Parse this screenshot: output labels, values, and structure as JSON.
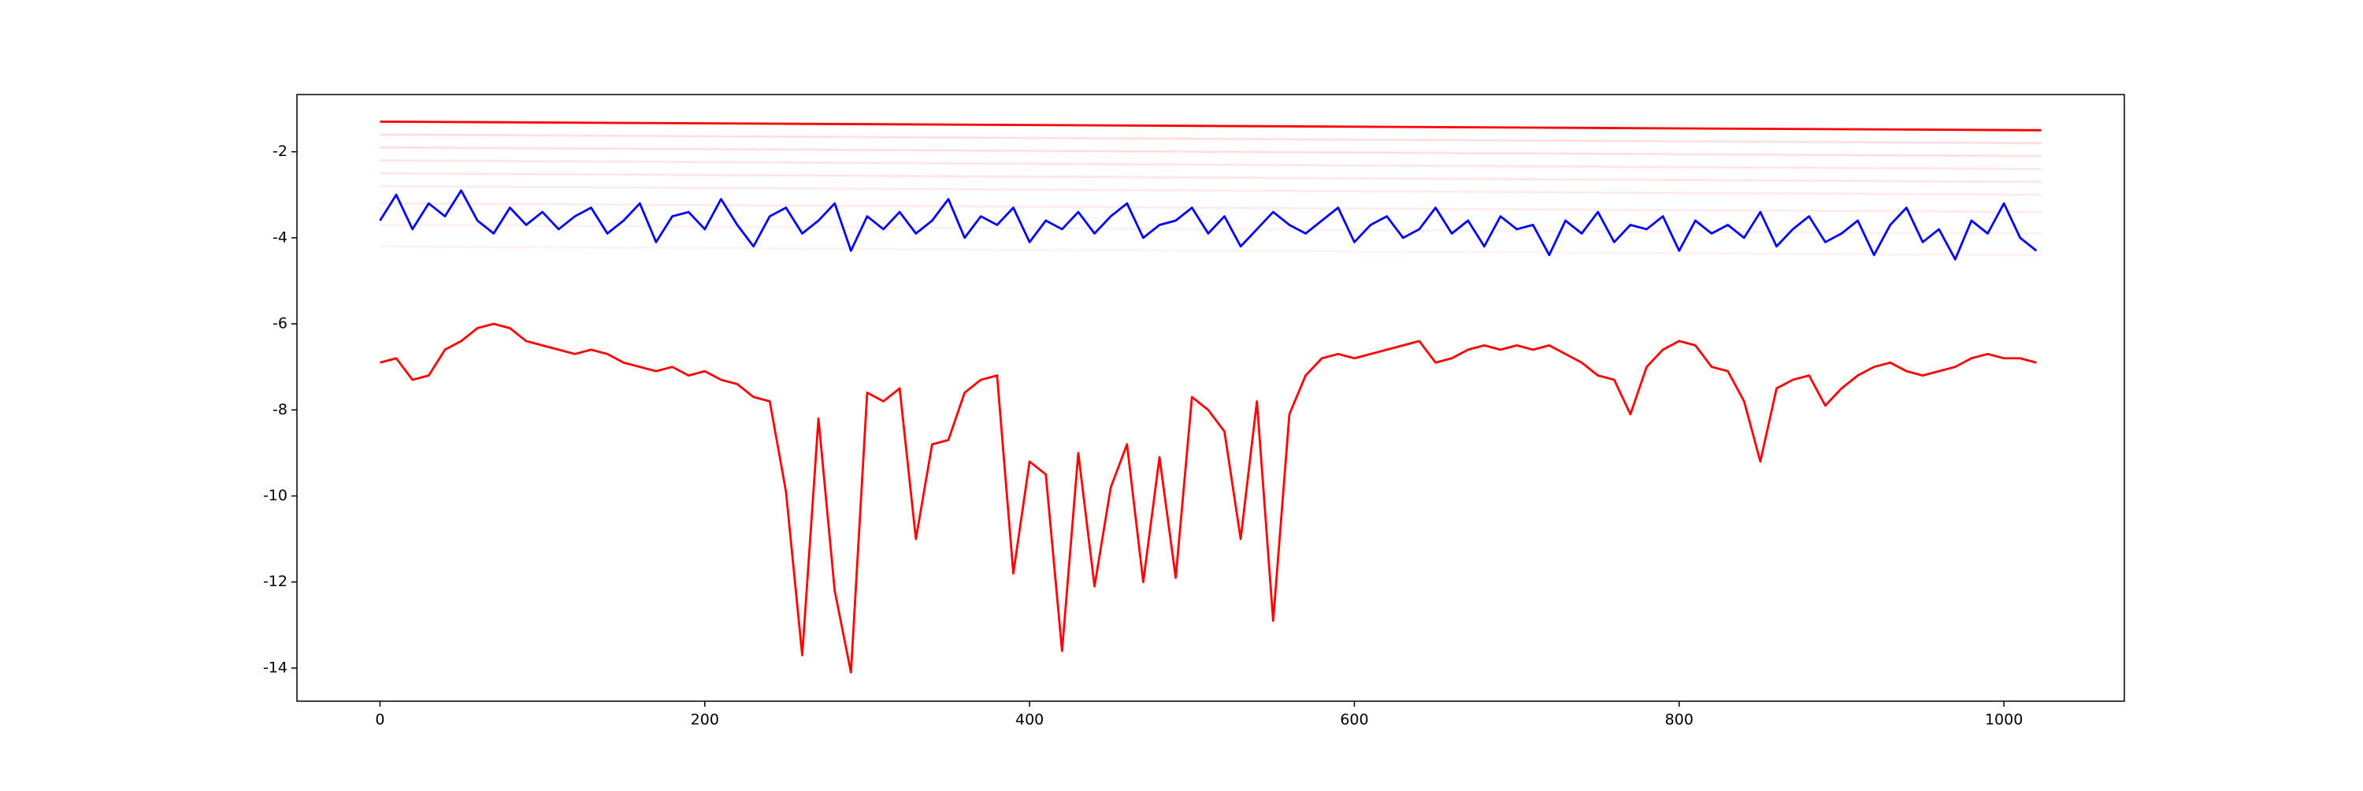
{
  "chart_data": {
    "type": "line",
    "x": [
      0,
      10,
      20,
      30,
      40,
      50,
      60,
      70,
      80,
      90,
      100,
      110,
      120,
      130,
      140,
      150,
      160,
      170,
      180,
      190,
      200,
      210,
      220,
      230,
      240,
      250,
      260,
      270,
      280,
      290,
      300,
      310,
      320,
      330,
      340,
      350,
      360,
      370,
      380,
      390,
      400,
      410,
      420,
      430,
      440,
      450,
      460,
      470,
      480,
      490,
      500,
      510,
      520,
      530,
      540,
      550,
      560,
      570,
      580,
      590,
      600,
      610,
      620,
      630,
      640,
      650,
      660,
      670,
      680,
      690,
      700,
      710,
      720,
      730,
      740,
      750,
      760,
      770,
      780,
      790,
      800,
      810,
      820,
      830,
      840,
      850,
      860,
      870,
      880,
      890,
      900,
      910,
      920,
      930,
      940,
      950,
      960,
      970,
      980,
      990,
      1000,
      1010,
      1020
    ],
    "series": [
      {
        "color": "#ff0000",
        "alpha": 0.12,
        "x": [
          0,
          1023
        ],
        "values": [
          -1.6,
          -1.8
        ]
      },
      {
        "color": "#ff0000",
        "alpha": 0.12,
        "x": [
          0,
          1023
        ],
        "values": [
          -1.9,
          -2.1
        ]
      },
      {
        "color": "#ff0000",
        "alpha": 0.1,
        "x": [
          0,
          1023
        ],
        "values": [
          -2.2,
          -2.4
        ]
      },
      {
        "color": "#ff0000",
        "alpha": 0.1,
        "x": [
          0,
          1023
        ],
        "values": [
          -2.5,
          -2.7
        ]
      },
      {
        "color": "#ff0000",
        "alpha": 0.08,
        "x": [
          0,
          1023
        ],
        "values": [
          -2.8,
          -3.0
        ]
      },
      {
        "color": "#ff0000",
        "alpha": 0.08,
        "x": [
          0,
          1023
        ],
        "values": [
          -3.2,
          -3.4
        ]
      },
      {
        "color": "#ff0000",
        "alpha": 0.06,
        "x": [
          0,
          1023
        ],
        "values": [
          -3.7,
          -3.9
        ]
      },
      {
        "color": "#ff0000",
        "alpha": 0.05,
        "x": [
          0,
          1023
        ],
        "values": [
          -4.2,
          -4.4
        ]
      },
      {
        "color": "#ff0000",
        "alpha": 1,
        "x": [
          0,
          1023
        ],
        "values": [
          -1.3,
          -1.5
        ]
      },
      {
        "color": "#0000ff",
        "alpha": 1,
        "values": [
          -3.6,
          -3.0,
          -3.8,
          -3.2,
          -3.5,
          -2.9,
          -3.6,
          -3.9,
          -3.3,
          -3.7,
          -3.4,
          -3.8,
          -3.5,
          -3.3,
          -3.9,
          -3.6,
          -3.2,
          -4.1,
          -3.5,
          -3.4,
          -3.8,
          -3.1,
          -3.7,
          -4.2,
          -3.5,
          -3.3,
          -3.9,
          -3.6,
          -3.2,
          -4.3,
          -3.5,
          -3.8,
          -3.4,
          -3.9,
          -3.6,
          -3.1,
          -4.0,
          -3.5,
          -3.7,
          -3.3,
          -4.1,
          -3.6,
          -3.8,
          -3.4,
          -3.9,
          -3.5,
          -3.2,
          -4.0,
          -3.7,
          -3.6,
          -3.3,
          -3.9,
          -3.5,
          -4.2,
          -3.8,
          -3.4,
          -3.7,
          -3.9,
          -3.6,
          -3.3,
          -4.1,
          -3.7,
          -3.5,
          -4.0,
          -3.8,
          -3.3,
          -3.9,
          -3.6,
          -4.2,
          -3.5,
          -3.8,
          -3.7,
          -4.4,
          -3.6,
          -3.9,
          -3.4,
          -4.1,
          -3.7,
          -3.8,
          -3.5,
          -4.3,
          -3.6,
          -3.9,
          -3.7,
          -4.0,
          -3.4,
          -4.2,
          -3.8,
          -3.5,
          -4.1,
          -3.9,
          -3.6,
          -4.4,
          -3.7,
          -3.3,
          -4.1,
          -3.8,
          -4.5,
          -3.6,
          -3.9,
          -3.2,
          -4.0,
          -4.3
        ]
      },
      {
        "color": "#ff0000",
        "alpha": 1,
        "values": [
          -6.9,
          -6.8,
          -7.3,
          -7.2,
          -6.6,
          -6.4,
          -6.1,
          -6.0,
          -6.1,
          -6.4,
          -6.5,
          -6.6,
          -6.7,
          -6.6,
          -6.7,
          -6.9,
          -7.0,
          -7.1,
          -7.0,
          -7.2,
          -7.1,
          -7.3,
          -7.4,
          -7.7,
          -7.8,
          -9.9,
          -13.7,
          -8.2,
          -12.2,
          -14.1,
          -7.6,
          -7.8,
          -7.5,
          -11.0,
          -8.8,
          -8.7,
          -7.6,
          -7.3,
          -7.2,
          -11.8,
          -9.2,
          -9.5,
          -13.6,
          -9.0,
          -12.1,
          -9.8,
          -8.8,
          -12.0,
          -9.1,
          -11.9,
          -7.7,
          -8.0,
          -8.5,
          -11.0,
          -7.8,
          -12.9,
          -8.1,
          -7.2,
          -6.8,
          -6.7,
          -6.8,
          -6.7,
          -6.6,
          -6.5,
          -6.4,
          -6.9,
          -6.8,
          -6.6,
          -6.5,
          -6.6,
          -6.5,
          -6.6,
          -6.5,
          -6.7,
          -6.9,
          -7.2,
          -7.3,
          -8.1,
          -7.0,
          -6.6,
          -6.4,
          -6.5,
          -7.0,
          -7.1,
          -7.8,
          -9.2,
          -7.5,
          -7.3,
          -7.2,
          -7.9,
          -7.5,
          -7.2,
          -7.0,
          -6.9,
          -7.1,
          -7.2,
          -7.1,
          -7.0,
          -6.8,
          -6.7,
          -6.8,
          -6.8,
          -6.9
        ]
      }
    ],
    "xlim": [
      -51.15,
      1074.15
    ],
    "ylim": [
      -14.77,
      -0.67
    ],
    "xticks": [
      0,
      200,
      400,
      600,
      800,
      1000
    ],
    "yticks": [
      -14,
      -12,
      -10,
      -8,
      -6,
      -4,
      -2
    ],
    "grid": false
  }
}
